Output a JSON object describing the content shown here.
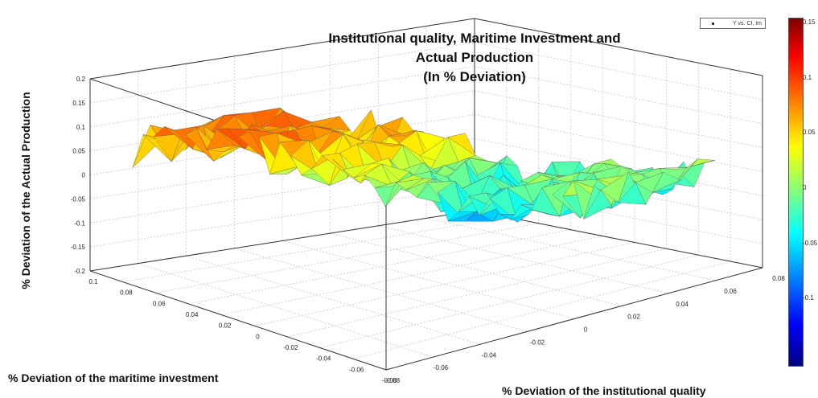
{
  "title_lines": [
    "Institutional quality, Maritime Investment and",
    "Actual Production",
    "(In % Deviation)"
  ],
  "chart_data": {
    "type": "surface",
    "title": "Institutional quality, Maritime Investment and Actual Production (In % Deviation)",
    "x_axis": {
      "label": "% Deviation of the maritime  investment",
      "ticks": [
        "0.1",
        "0.08",
        "0.06",
        "0.04",
        "0.02",
        "0",
        "-0.02",
        "-0.04",
        "-0.06",
        "-0.08"
      ],
      "range": [
        -0.08,
        0.1
      ]
    },
    "y_axis": {
      "label": "% Deviation of the institutional quality",
      "ticks": [
        "-0.08",
        "-0.06",
        "-0.04",
        "-0.02",
        "0",
        "0.02",
        "0.04",
        "0.06",
        "0.08"
      ],
      "range": [
        -0.08,
        0.08
      ]
    },
    "z_axis": {
      "label": "% Deviation of the Actual Production",
      "ticks": [
        "0.2",
        "0.15",
        "0.1",
        "0.05",
        "0",
        "-0.05",
        "-0.1",
        "-0.15",
        "-0.2"
      ],
      "range": [
        -0.2,
        0.2
      ]
    },
    "legend": {
      "entry": "Y vs. CI, Im",
      "placement": "top-right"
    },
    "colorbar": {
      "ticks": [
        "0.15",
        "0.1",
        "0.05",
        "0",
        "-0.05",
        "-0.1"
      ],
      "range": [
        -0.15,
        0.15
      ],
      "colormap": "jet"
    },
    "grid": true
  }
}
